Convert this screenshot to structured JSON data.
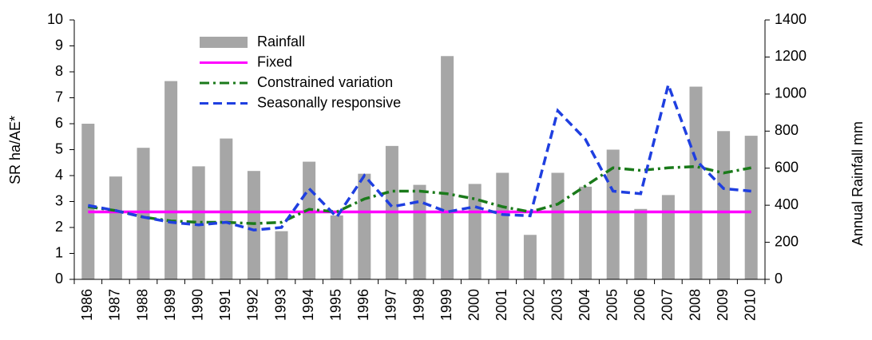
{
  "chart_data": {
    "type": "bar",
    "y_label": "SR ha/AE*",
    "y2_label": "Annual Rainfall mm",
    "categories": [
      "1986",
      "1987",
      "1988",
      "1989",
      "1990",
      "1991",
      "1992",
      "1993",
      "1994",
      "1995",
      "1996",
      "1997",
      "1998",
      "1999",
      "2000",
      "2001",
      "2002",
      "2003",
      "2004",
      "2005",
      "2006",
      "2007",
      "2008",
      "2009",
      "2010"
    ],
    "series": [
      {
        "name": "Rainfall",
        "type": "bar",
        "axis": "y2",
        "color": "#a6a6a6",
        "values": [
          840,
          555,
          710,
          1070,
          610,
          760,
          585,
          260,
          635,
          345,
          570,
          720,
          510,
          1205,
          515,
          575,
          240,
          575,
          500,
          700,
          380,
          455,
          1040,
          800,
          775
        ]
      },
      {
        "name": "Fixed",
        "type": "line",
        "style": "solid",
        "color": "#ff00ff",
        "values": [
          2.6,
          2.6,
          2.6,
          2.6,
          2.6,
          2.6,
          2.6,
          2.6,
          2.6,
          2.6,
          2.6,
          2.6,
          2.6,
          2.6,
          2.6,
          2.6,
          2.6,
          2.6,
          2.6,
          2.6,
          2.6,
          2.6,
          2.6,
          2.6,
          2.6
        ]
      },
      {
        "name": "Constrained variation",
        "type": "line",
        "style": "dashdot",
        "color": "#1a7a1a",
        "values": [
          2.8,
          2.65,
          2.4,
          2.25,
          2.2,
          2.2,
          2.15,
          2.2,
          2.7,
          2.6,
          3.1,
          3.4,
          3.4,
          3.3,
          3.1,
          2.8,
          2.6,
          2.9,
          3.6,
          4.3,
          4.2,
          4.3,
          4.35,
          4.1,
          4.3
        ]
      },
      {
        "name": "Seasonally responsive",
        "type": "line",
        "style": "dashed",
        "color": "#1f3fe0",
        "values": [
          2.85,
          2.65,
          2.4,
          2.2,
          2.1,
          2.2,
          1.9,
          2.0,
          3.5,
          2.4,
          4.0,
          2.8,
          3.0,
          2.6,
          2.8,
          2.5,
          2.45,
          6.5,
          5.4,
          3.4,
          3.3,
          7.5,
          4.6,
          3.5,
          3.4
        ]
      }
    ],
    "ylim": [
      0,
      10
    ],
    "yticks": [
      0,
      1,
      2,
      3,
      4,
      5,
      6,
      7,
      8,
      9,
      10
    ],
    "y2lim": [
      0,
      1400
    ],
    "y2ticks": [
      0,
      200,
      400,
      600,
      800,
      1000,
      1200,
      1400
    ],
    "legend": "top-left"
  }
}
